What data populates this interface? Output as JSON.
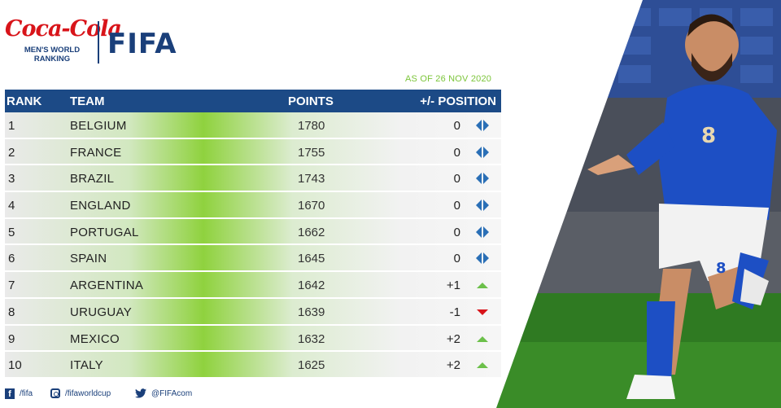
{
  "brand": {
    "sponsor_logo": "Coca-Cola",
    "sponsor_sub": "MEN'S WORLD RANKING",
    "fifa_logo": "FIFA"
  },
  "as_of": "AS OF 26 NOV 2020",
  "table": {
    "headers": {
      "rank": "RANK",
      "team": "TEAM",
      "points": "POINTS",
      "position": "+/- POSITION"
    },
    "rows": [
      {
        "rank": "1",
        "team": "BELGIUM",
        "points": "1780",
        "change": "0",
        "trend": "same"
      },
      {
        "rank": "2",
        "team": "FRANCE",
        "points": "1755",
        "change": "0",
        "trend": "same"
      },
      {
        "rank": "3",
        "team": "BRAZIL",
        "points": "1743",
        "change": "0",
        "trend": "same"
      },
      {
        "rank": "4",
        "team": "ENGLAND",
        "points": "1670",
        "change": "0",
        "trend": "same"
      },
      {
        "rank": "5",
        "team": "PORTUGAL",
        "points": "1662",
        "change": "0",
        "trend": "same"
      },
      {
        "rank": "6",
        "team": "SPAIN",
        "points": "1645",
        "change": "0",
        "trend": "same"
      },
      {
        "rank": "7",
        "team": "ARGENTINA",
        "points": "1642",
        "change": "+1",
        "trend": "up"
      },
      {
        "rank": "8",
        "team": "URUGUAY",
        "points": "1639",
        "change": "-1",
        "trend": "down"
      },
      {
        "rank": "9",
        "team": "MEXICO",
        "points": "1632",
        "change": "+2",
        "trend": "up"
      },
      {
        "rank": "10",
        "team": "ITALY",
        "points": "1625",
        "change": "+2",
        "trend": "up"
      }
    ]
  },
  "footer": {
    "facebook": "/fifa",
    "instagram": "/fifaworldcup",
    "twitter": "@FIFAcom"
  },
  "colors": {
    "header_bg": "#1c4a86",
    "accent_green": "#8fd23e",
    "up": "#6cc04a",
    "down": "#d8141a",
    "same": "#2a6fb6"
  },
  "icons": [
    "facebook-icon",
    "instagram-icon",
    "twitter-icon",
    "same-position-icon",
    "up-arrow-icon",
    "down-arrow-icon"
  ]
}
